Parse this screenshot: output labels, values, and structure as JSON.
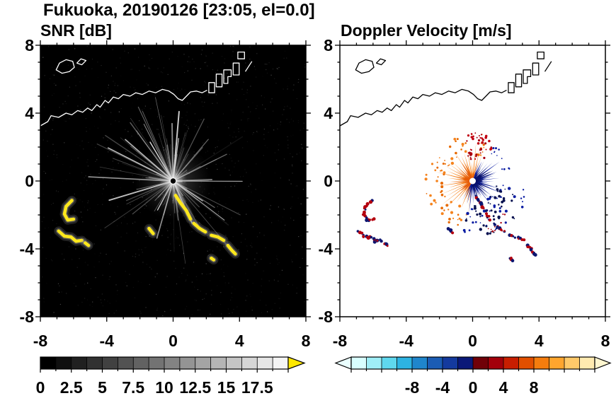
{
  "header": {
    "title": "Fukuoka, 20190126 [23:05, el=0.0]"
  },
  "panels": {
    "snr": {
      "title": "SNR [dB]"
    },
    "doppler": {
      "title": "Doppler Velocity [m/s]"
    }
  },
  "axes": {
    "x_tick_labels": [
      "-8",
      "-4",
      "0",
      "4",
      "8"
    ],
    "y_tick_labels": [
      "8",
      "4",
      "0",
      "-4",
      "-8"
    ],
    "x_range": [
      -8,
      8
    ],
    "y_range": [
      -8,
      8
    ],
    "major_step": 4,
    "minor_step": 1
  },
  "colorbars": {
    "snr": {
      "labels": [
        "0",
        "2.5",
        "5",
        "7.5",
        "10",
        "12.5",
        "15",
        "17.5"
      ],
      "values": [
        0,
        2.5,
        5,
        7.5,
        10,
        12.5,
        15,
        17.5
      ],
      "range": [
        0,
        20
      ],
      "segment_colors": [
        "#000000",
        "#101010",
        "#202020",
        "#313131",
        "#414141",
        "#525252",
        "#626262",
        "#737373",
        "#838383",
        "#949494",
        "#a4a4a4",
        "#b5b5b5",
        "#c5c5c5",
        "#d6d6d6",
        "#e6e6e6",
        "#f4f4f4"
      ],
      "over_arrow_color": "#ffe800"
    },
    "doppler": {
      "labels": [
        "-8",
        "-4",
        "0",
        "4",
        "8"
      ],
      "values": [
        -8,
        -4,
        0,
        4,
        8
      ],
      "range": [
        -16,
        16
      ],
      "segment_colors": [
        "#d8ffff",
        "#9feef7",
        "#5fd8ee",
        "#2db3e2",
        "#1f86cc",
        "#1b5cb4",
        "#143a9e",
        "#0a1878",
        "#700008",
        "#a3000a",
        "#c81e00",
        "#e24f00",
        "#f57d0e",
        "#ffa52e",
        "#ffc96a",
        "#ffeab0"
      ],
      "under_arrow_color": "#eaffff",
      "over_arrow_color": "#fff6d0"
    }
  },
  "chart_data": {
    "type": "heatmap",
    "subtype": "radar-ppi-dual-panel",
    "title": "Fukuoka, 20190126 [23:05, el=0.0]",
    "x_range": [
      -8,
      8
    ],
    "y_range": [
      -8,
      8
    ],
    "radar_center": [
      0,
      0
    ],
    "snr": {
      "name": "SNR",
      "units": "dB",
      "colorbar_ticks": [
        0,
        2.5,
        5,
        7.5,
        10,
        12.5,
        15,
        17.5
      ],
      "background": "#000000",
      "coast_color": "#ffffff",
      "clutter_color": "#ffe81c",
      "streaks": {
        "seed": 7,
        "count": 95,
        "bright_count": 16,
        "min_len": 0.5,
        "max_len": 5.2
      },
      "speckle": {
        "seed": 3,
        "count": 1000
      }
    },
    "doppler": {
      "name": "Doppler Velocity",
      "units": "m/s",
      "colorbar_ticks": [
        -8,
        -4,
        0,
        4,
        8
      ],
      "background": "#ffffff",
      "coast_color": "#000000",
      "fans": {
        "positive": {
          "color": "#f5831d",
          "overlay": "#e25303",
          "a0": 70,
          "a1": 262,
          "r_min": 1.0,
          "r_max": 2.6,
          "seed": 11
        },
        "negative": {
          "color": "#0a1ca2",
          "overlay": "#081064",
          "a0": -118,
          "a1": 72,
          "r_min": 0.8,
          "r_max": 2.1,
          "seed": 21
        }
      },
      "speckle_colors": {
        "red": "#a8000e",
        "dark_red": "#c00010",
        "orange": "#e86a00",
        "navy": "#0a1ca2",
        "dark_navy": "#06104f"
      }
    },
    "coastline": {
      "main": [
        [
          -8.0,
          3.25
        ],
        [
          -7.55,
          3.5
        ],
        [
          -7.35,
          3.85
        ],
        [
          -6.9,
          3.75
        ],
        [
          -6.45,
          4.0
        ],
        [
          -6.1,
          3.9
        ],
        [
          -5.75,
          4.15
        ],
        [
          -5.45,
          4.05
        ],
        [
          -5.15,
          4.3
        ],
        [
          -4.9,
          4.15
        ],
        [
          -4.6,
          4.5
        ],
        [
          -4.4,
          4.35
        ],
        [
          -4.1,
          4.75
        ],
        [
          -3.9,
          4.6
        ],
        [
          -3.6,
          4.95
        ],
        [
          -3.3,
          4.85
        ],
        [
          -3.0,
          5.1
        ],
        [
          -2.6,
          5.0
        ],
        [
          -2.25,
          5.2
        ],
        [
          -1.85,
          5.1
        ],
        [
          -1.45,
          5.3
        ],
        [
          -1.05,
          5.2
        ],
        [
          -0.65,
          5.4
        ],
        [
          -0.25,
          5.3
        ],
        [
          0.05,
          5.1
        ],
        [
          0.3,
          4.85
        ],
        [
          0.55,
          4.75
        ],
        [
          0.8,
          5.0
        ],
        [
          1.05,
          5.25
        ],
        [
          1.4,
          5.3
        ],
        [
          1.75,
          5.2
        ],
        [
          2.05,
          5.35
        ]
      ],
      "island": [
        [
          -7.05,
          6.55
        ],
        [
          -6.85,
          6.95
        ],
        [
          -6.45,
          7.15
        ],
        [
          -6.05,
          7.05
        ],
        [
          -5.95,
          6.7
        ],
        [
          -6.25,
          6.45
        ],
        [
          -6.7,
          6.35
        ]
      ],
      "islet": [
        [
          -5.8,
          6.95
        ],
        [
          -5.55,
          7.2
        ],
        [
          -5.25,
          7.1
        ],
        [
          -5.5,
          6.85
        ]
      ],
      "harbor": [
        [
          [
            2.15,
            5.2
          ],
          [
            2.15,
            5.8
          ],
          [
            2.5,
            5.8
          ],
          [
            2.5,
            5.2
          ]
        ],
        [
          [
            2.6,
            5.55
          ],
          [
            2.6,
            6.3
          ],
          [
            2.95,
            6.3
          ],
          [
            2.95,
            5.55
          ]
        ],
        [
          [
            3.05,
            5.75
          ],
          [
            3.05,
            6.55
          ],
          [
            3.5,
            6.55
          ],
          [
            3.5,
            6.15
          ],
          [
            3.3,
            6.15
          ],
          [
            3.3,
            5.75
          ]
        ],
        [
          [
            3.62,
            6.25
          ],
          [
            3.62,
            6.95
          ],
          [
            3.98,
            6.95
          ],
          [
            3.98,
            6.25
          ]
        ],
        [
          [
            3.9,
            7.2
          ],
          [
            3.9,
            7.6
          ],
          [
            4.3,
            7.6
          ],
          [
            4.3,
            7.2
          ]
        ]
      ],
      "lines": [
        [
          [
            4.35,
            6.45
          ],
          [
            4.75,
            7.05
          ]
        ]
      ]
    },
    "clutter_chains": [
      [
        [
          -6.1,
          -1.15
        ],
        [
          -6.45,
          -1.5
        ],
        [
          -6.55,
          -1.95
        ],
        [
          -6.35,
          -2.3
        ],
        [
          -6.0,
          -2.25
        ]
      ],
      [
        [
          -6.9,
          -2.95
        ],
        [
          -6.55,
          -3.25
        ],
        [
          -6.15,
          -3.3
        ],
        [
          -5.85,
          -3.55
        ],
        [
          -5.5,
          -3.5
        ]
      ],
      [
        [
          -5.3,
          -3.65
        ],
        [
          -5.1,
          -3.8
        ]
      ],
      [
        [
          0.15,
          -0.85
        ],
        [
          0.45,
          -1.3
        ],
        [
          0.8,
          -1.75
        ],
        [
          1.05,
          -2.25
        ]
      ],
      [
        [
          1.25,
          -2.5
        ],
        [
          1.6,
          -2.8
        ],
        [
          1.95,
          -3.0
        ]
      ],
      [
        [
          2.3,
          -3.2
        ],
        [
          2.7,
          -3.3
        ],
        [
          3.05,
          -3.5
        ]
      ],
      [
        [
          3.3,
          -3.8
        ],
        [
          3.55,
          -4.1
        ],
        [
          3.75,
          -4.3
        ]
      ],
      [
        [
          2.3,
          -4.55
        ],
        [
          2.45,
          -4.65
        ]
      ],
      [
        [
          -1.45,
          -2.8
        ],
        [
          -1.2,
          -3.1
        ]
      ]
    ]
  }
}
